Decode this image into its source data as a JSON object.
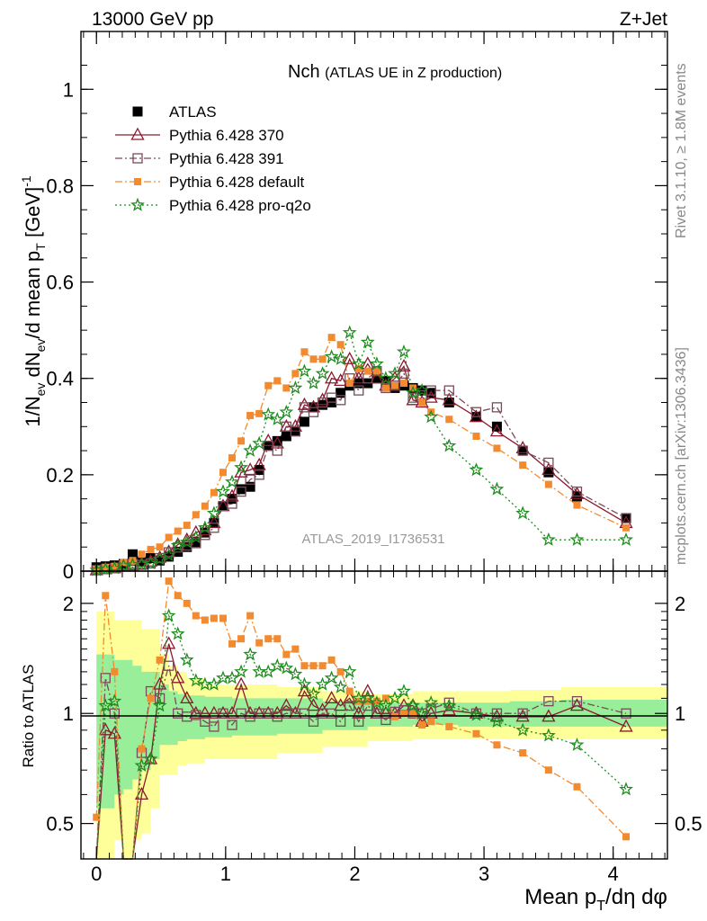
{
  "header": {
    "energy_label": "13000 GeV pp",
    "process_label": "Z+Jet",
    "plot_title_main": "Nch",
    "plot_title_sub": "(ATLAS UE in Z production)",
    "analysis_id": "ATLAS_2019_I1736531",
    "side_rivet": "Rivet 3.1.10, ≥ 1.8M events",
    "side_mcplots": "mcplots.cern.ch [arXiv:1306.3436]"
  },
  "axes": {
    "main_ylabel": "1/N_ev dN_ev/d mean p_T [GeV]^-1",
    "ratio_ylabel": "Ratio to ATLAS",
    "xlabel": "Mean p_T/dη dφ"
  },
  "colors": {
    "atlas": "#000000",
    "p370": "#8b1a2e",
    "p391": "#7b4a5a",
    "pdefault": "#f28a30",
    "pq2o": "#1e8c1e",
    "band_outer": "#ffff99",
    "band_inner": "#99ee99"
  },
  "chart_data": [
    {
      "type": "line",
      "panel": "main",
      "title": "Nch (ATLAS UE in Z production)",
      "xlabel": "Mean p_T/dη dφ",
      "ylabel": "1/N_ev dN_ev/d mean p_T [GeV]^-1",
      "xlim": [
        -0.12,
        4.42
      ],
      "ylim": [
        0,
        1.12
      ],
      "xticks": [
        0,
        1,
        2,
        3,
        4
      ],
      "yticks": [
        0,
        0.2,
        0.4,
        0.6,
        0.8,
        1
      ],
      "yticklabels": [
        "0",
        "0.2",
        "0.4",
        "0.6",
        "0.8",
        "1"
      ],
      "legend_position": "top-left",
      "x": [
        0.0,
        0.07,
        0.14,
        0.21,
        0.28,
        0.35,
        0.42,
        0.49,
        0.56,
        0.63,
        0.7,
        0.77,
        0.84,
        0.91,
        0.98,
        1.05,
        1.12,
        1.19,
        1.26,
        1.33,
        1.4,
        1.47,
        1.54,
        1.61,
        1.68,
        1.75,
        1.82,
        1.89,
        1.96,
        2.03,
        2.1,
        2.17,
        2.24,
        2.31,
        2.38,
        2.45,
        2.52,
        2.59,
        2.73,
        2.94,
        3.1,
        3.3,
        3.5,
        3.72,
        4.1
      ],
      "series": [
        {
          "name": "ATLAS",
          "key": "atlas",
          "marker": "square-filled",
          "line": "none",
          "values": [
            0.008,
            0.01,
            0.012,
            0.015,
            0.035,
            0.02,
            0.027,
            0.022,
            0.03,
            0.04,
            0.05,
            0.06,
            0.08,
            0.1,
            0.135,
            0.15,
            0.17,
            0.175,
            0.21,
            0.26,
            0.27,
            0.28,
            0.29,
            0.31,
            0.34,
            0.345,
            0.35,
            0.37,
            0.385,
            0.39,
            0.39,
            0.4,
            0.395,
            0.38,
            0.385,
            0.38,
            0.375,
            0.37,
            0.35,
            0.32,
            0.3,
            0.25,
            0.205,
            0.155,
            0.11
          ]
        },
        {
          "name": "Pythia 6.428 370",
          "key": "p370",
          "marker": "triangle-open",
          "line": "solid",
          "values": [
            0.002,
            0.004,
            0.006,
            0.01,
            0.012,
            0.014,
            0.02,
            0.028,
            0.04,
            0.055,
            0.065,
            0.08,
            0.085,
            0.1,
            0.135,
            0.155,
            0.205,
            0.21,
            0.22,
            0.27,
            0.265,
            0.3,
            0.3,
            0.345,
            0.34,
            0.355,
            0.4,
            0.395,
            0.44,
            0.4,
            0.43,
            0.4,
            0.385,
            0.4,
            0.425,
            0.355,
            0.35,
            0.36,
            0.355,
            0.32,
            0.29,
            0.255,
            0.21,
            0.16,
            0.1
          ]
        },
        {
          "name": "Pythia 6.428 391",
          "key": "p391",
          "marker": "square-open",
          "line": "dashdot",
          "values": [
            0.002,
            0.004,
            0.006,
            0.012,
            0.015,
            0.013,
            0.016,
            0.027,
            0.039,
            0.049,
            0.053,
            0.058,
            0.075,
            0.09,
            0.135,
            0.14,
            0.165,
            0.19,
            0.2,
            0.26,
            0.25,
            0.3,
            0.29,
            0.34,
            0.33,
            0.35,
            0.36,
            0.355,
            0.4,
            0.375,
            0.4,
            0.415,
            0.38,
            0.385,
            0.41,
            0.36,
            0.365,
            0.375,
            0.375,
            0.33,
            0.34,
            0.25,
            0.225,
            0.165,
            0.11
          ]
        },
        {
          "name": "Pythia 6.428 default",
          "key": "pdefault",
          "marker": "square-filled-small",
          "line": "dashdot",
          "values": [
            0.004,
            0.008,
            0.01,
            0.018,
            0.022,
            0.035,
            0.045,
            0.05,
            0.07,
            0.083,
            0.095,
            0.117,
            0.135,
            0.163,
            0.205,
            0.235,
            0.27,
            0.323,
            0.327,
            0.385,
            0.395,
            0.38,
            0.41,
            0.455,
            0.44,
            0.44,
            0.485,
            0.47,
            0.39,
            0.42,
            0.415,
            0.415,
            0.38,
            0.385,
            0.39,
            0.38,
            0.35,
            0.33,
            0.315,
            0.28,
            0.255,
            0.22,
            0.18,
            0.137,
            0.09
          ]
        },
        {
          "name": "Pythia 6.428 pro-q2o",
          "key": "pq2o",
          "marker": "star-open",
          "line": "dotted",
          "values": [
            0.002,
            0.004,
            0.006,
            0.011,
            0.013,
            0.014,
            0.016,
            0.025,
            0.033,
            0.053,
            0.06,
            0.07,
            0.09,
            0.12,
            0.165,
            0.185,
            0.215,
            0.25,
            0.265,
            0.325,
            0.315,
            0.33,
            0.38,
            0.415,
            0.39,
            0.41,
            0.445,
            0.44,
            0.495,
            0.43,
            0.475,
            0.43,
            0.4,
            0.41,
            0.455,
            0.37,
            0.375,
            0.32,
            0.26,
            0.21,
            0.17,
            0.12,
            0.065,
            0.065,
            0.065
          ]
        }
      ]
    },
    {
      "type": "line",
      "panel": "ratio",
      "ylabel": "Ratio to ATLAS",
      "xlabel": "Mean p_T/dη dφ",
      "ylim": [
        0.4,
        2.45
      ],
      "yscale": "log",
      "yticks": [
        0.5,
        1,
        2
      ],
      "yticklabels": [
        "0.5",
        "1",
        "2"
      ],
      "reference_line": 1,
      "band_outer": {
        "x": [
          0.0,
          0.07,
          0.14,
          0.21,
          0.28,
          0.35,
          0.42,
          0.49,
          0.56,
          0.63,
          0.7,
          0.84,
          1.05,
          1.4,
          1.75,
          2.1,
          2.45,
          2.8,
          3.2,
          3.6,
          4.0,
          4.42
        ],
        "lo": [
          0.4,
          0.4,
          0.45,
          0.4,
          0.45,
          0.47,
          0.55,
          0.68,
          0.68,
          0.72,
          0.73,
          0.75,
          0.75,
          0.78,
          0.81,
          0.84,
          0.85,
          0.85,
          0.85,
          0.85,
          0.85,
          0.85
        ],
        "hi": [
          1.9,
          1.9,
          1.8,
          1.8,
          1.8,
          1.7,
          1.7,
          1.45,
          1.35,
          1.3,
          1.25,
          1.2,
          1.2,
          1.18,
          1.15,
          1.13,
          1.15,
          1.15,
          1.16,
          1.18,
          1.18,
          1.18
        ]
      },
      "band_inner": {
        "x": [
          0.0,
          0.07,
          0.14,
          0.21,
          0.28,
          0.35,
          0.42,
          0.49,
          0.56,
          0.63,
          0.7,
          0.84,
          1.05,
          1.4,
          1.75,
          2.1,
          2.45,
          2.8,
          3.2,
          3.6,
          4.0,
          4.42
        ],
        "lo": [
          0.55,
          0.55,
          0.6,
          0.62,
          0.66,
          0.7,
          0.75,
          0.82,
          0.82,
          0.84,
          0.85,
          0.86,
          0.87,
          0.88,
          0.9,
          0.92,
          0.93,
          0.92,
          0.92,
          0.92,
          0.92,
          0.92
        ],
        "hi": [
          1.45,
          1.45,
          1.4,
          1.4,
          1.35,
          1.3,
          1.3,
          1.2,
          1.15,
          1.13,
          1.12,
          1.11,
          1.1,
          1.1,
          1.08,
          1.07,
          1.07,
          1.07,
          1.08,
          1.09,
          1.09,
          1.09
        ]
      },
      "x": [
        0.0,
        0.07,
        0.14,
        0.21,
        0.28,
        0.35,
        0.42,
        0.49,
        0.56,
        0.63,
        0.7,
        0.77,
        0.84,
        0.91,
        0.98,
        1.05,
        1.12,
        1.19,
        1.26,
        1.33,
        1.4,
        1.47,
        1.54,
        1.61,
        1.68,
        1.75,
        1.82,
        1.89,
        1.96,
        2.03,
        2.1,
        2.17,
        2.24,
        2.31,
        2.38,
        2.45,
        2.52,
        2.59,
        2.73,
        2.94,
        3.1,
        3.3,
        3.5,
        3.72,
        4.1
      ],
      "series": [
        {
          "name": "Pythia 6.428 370",
          "key": "p370",
          "values": [
            0.35,
            0.9,
            0.88,
            0.3,
            0.3,
            0.6,
            0.75,
            1.2,
            1.55,
            1.25,
            1.1,
            1.0,
            1.0,
            1.0,
            1.0,
            1.0,
            1.2,
            1.0,
            1.0,
            1.0,
            1.0,
            1.05,
            1.0,
            1.15,
            1.05,
            1.02,
            1.1,
            1.05,
            1.1,
            1.0,
            1.15,
            1.0,
            1.0,
            1.0,
            1.05,
            1.05,
            0.95,
            1.0,
            1.02,
            1.0,
            0.98,
            0.98,
            0.98,
            1.05,
            0.92
          ]
        },
        {
          "name": "Pythia 6.428 391",
          "key": "p391",
          "values": [
            0.35,
            1.25,
            1.0,
            0.3,
            0.25,
            0.78,
            1.15,
            1.1,
            1.35,
            1.0,
            0.98,
            0.99,
            0.95,
            0.92,
            1.0,
            0.93,
            1.0,
            0.98,
            1.0,
            1.0,
            0.98,
            1.0,
            1.0,
            1.0,
            0.95,
            1.0,
            1.0,
            0.95,
            1.05,
            0.95,
            1.05,
            1.0,
            0.96,
            1.01,
            1.02,
            1.0,
            1.0,
            1.03,
            1.07,
            1.0,
            1.0,
            1.0,
            1.08,
            1.08,
            1.0
          ]
        },
        {
          "name": "Pythia 6.428 default",
          "key": "pdefault",
          "values": [
            0.52,
            2.1,
            1.3,
            0.36,
            0.33,
            0.8,
            1.1,
            1.4,
            2.3,
            2.1,
            2.0,
            1.85,
            1.8,
            1.82,
            1.82,
            1.55,
            1.6,
            1.85,
            1.56,
            1.6,
            1.6,
            1.45,
            1.5,
            1.35,
            1.35,
            1.35,
            1.4,
            1.3,
            1.15,
            1.08,
            1.08,
            1.08,
            1.1,
            0.98,
            1.0,
            1.0,
            0.93,
            0.95,
            0.92,
            0.88,
            0.82,
            0.78,
            0.7,
            0.63,
            0.46
          ]
        },
        {
          "name": "Pythia 6.428 pro-q2o",
          "key": "pq2o",
          "values": [
            0.35,
            1.05,
            1.08,
            0.35,
            0.3,
            0.72,
            0.75,
            1.05,
            1.85,
            1.65,
            1.4,
            1.23,
            1.2,
            1.2,
            1.25,
            1.25,
            1.3,
            1.45,
            1.3,
            1.3,
            1.35,
            1.33,
            1.28,
            1.2,
            1.13,
            1.2,
            1.25,
            1.18,
            1.3,
            1.1,
            1.1,
            1.07,
            1.05,
            1.1,
            1.15,
            1.05,
            1.0,
            1.07,
            1.05,
            0.99,
            0.95,
            0.9,
            0.87,
            0.82,
            0.62
          ]
        }
      ]
    }
  ]
}
